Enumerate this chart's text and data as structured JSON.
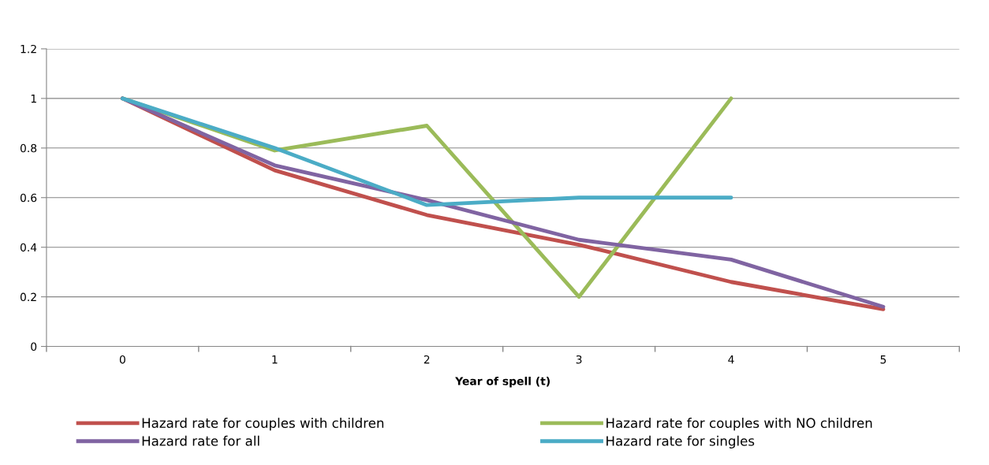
{
  "chart_data": {
    "type": "line",
    "xlabel": "Year of spell (t)",
    "categories": [
      "0",
      "1",
      "2",
      "3",
      "4",
      "5"
    ],
    "ylim": [
      0,
      1.2
    ],
    "yticks": [
      0,
      0.2,
      0.4,
      0.6,
      0.8,
      1,
      1.2
    ],
    "grid": "y",
    "legend": "bottom",
    "marker": "none",
    "line_style": "solid",
    "series": [
      {
        "name": "Hazard rate for couples with children",
        "color": "#c0504d",
        "values": [
          1,
          0.71,
          0.53,
          0.41,
          0.26,
          0.15
        ]
      },
      {
        "name": "Hazard rate for couples with NO children",
        "color": "#9bbb59",
        "values": [
          1,
          0.79,
          0.89,
          0.2,
          1,
          null
        ]
      },
      {
        "name": "Hazard rate for all",
        "color": "#8064a2",
        "values": [
          1,
          0.73,
          0.59,
          0.43,
          0.35,
          0.16
        ]
      },
      {
        "name": "Hazard rate for singles",
        "color": "#4bacc6",
        "values": [
          1,
          0.8,
          0.57,
          0.6,
          0.6,
          null
        ]
      }
    ]
  }
}
